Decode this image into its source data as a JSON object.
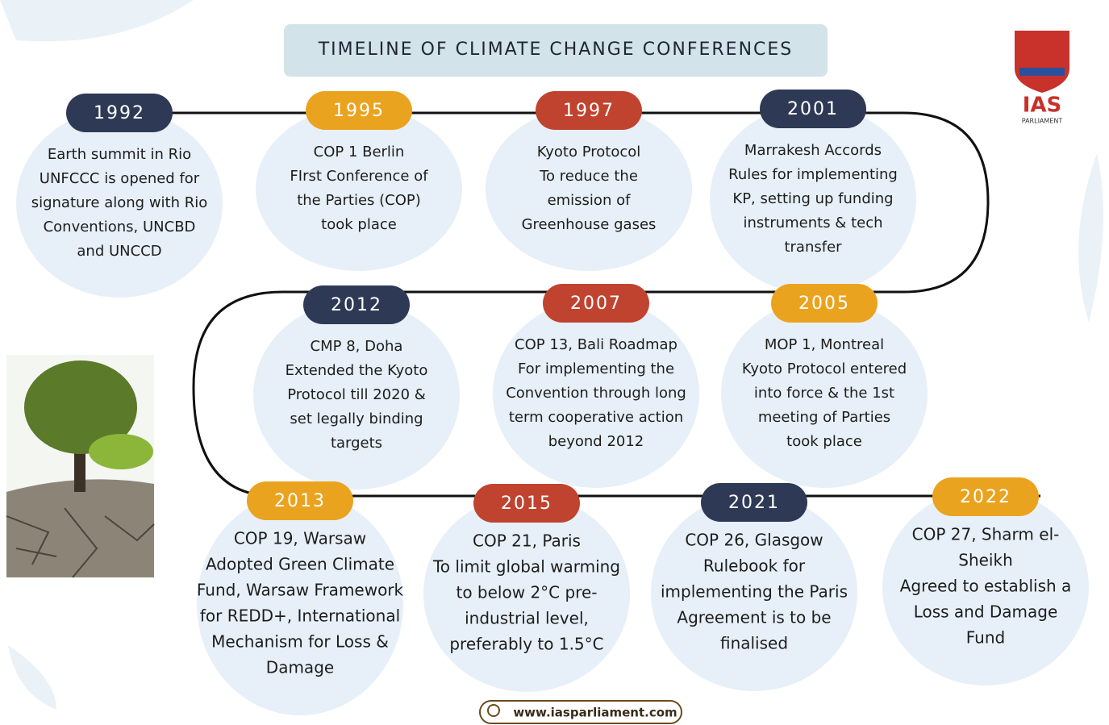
{
  "header": {
    "title": "TIMELINE OF CLIMATE CHANGE CONFERENCES"
  },
  "logo": {
    "name": "IAS",
    "subtitle": "PARLIAMENT"
  },
  "footer": {
    "url": "www.iasparliament.com"
  },
  "events": [
    {
      "year": "1992",
      "lines": [
        "Earth summit in Rio",
        "UNFCCC is opened for",
        "signature along with Rio",
        "Conventions, UNCBD",
        "and UNCCD"
      ]
    },
    {
      "year": "1995",
      "lines": [
        "COP 1 Berlin",
        "FIrst Conference of",
        "the Parties (COP)",
        "took place"
      ]
    },
    {
      "year": "1997",
      "lines": [
        "Kyoto Protocol",
        "To reduce the",
        "emission of",
        "Greenhouse gases"
      ]
    },
    {
      "year": "2001",
      "lines": [
        "Marrakesh Accords",
        "Rules for implementing",
        "KP, setting up funding",
        "instruments & tech",
        "transfer"
      ]
    },
    {
      "year": "2005",
      "lines": [
        "MOP 1, Montreal",
        "Kyoto Protocol entered",
        "into force & the 1st",
        "meeting of Parties",
        "took place"
      ]
    },
    {
      "year": "2007",
      "lines": [
        "COP 13, Bali Roadmap",
        "For implementing the",
        "Convention through long",
        "term cooperative action",
        "beyond 2012"
      ]
    },
    {
      "year": "2012",
      "lines": [
        "CMP 8, Doha",
        "Extended the Kyoto",
        "Protocol till 2020 &",
        "set legally binding",
        "targets"
      ]
    },
    {
      "year": "2013",
      "lines": [
        "COP 19, Warsaw",
        "Adopted Green Climate",
        "Fund, Warsaw Framework",
        "for REDD+, International",
        "Mechanism for Loss &",
        "Damage"
      ]
    },
    {
      "year": "2015",
      "lines": [
        "COP 21, Paris",
        "To limit global warming",
        "to below 2°C pre-",
        "industrial level,",
        "preferably to 1.5°C"
      ]
    },
    {
      "year": "2021",
      "lines": [
        "COP 26, Glasgow",
        "Rulebook for",
        "implementing the Paris",
        "Agreement is to be",
        "finalised"
      ]
    },
    {
      "year": "2022",
      "lines": [
        "COP 27, Sharm el-",
        "Sheikh",
        "Agreed to establish a",
        "Loss and Damage",
        "Fund"
      ]
    }
  ]
}
